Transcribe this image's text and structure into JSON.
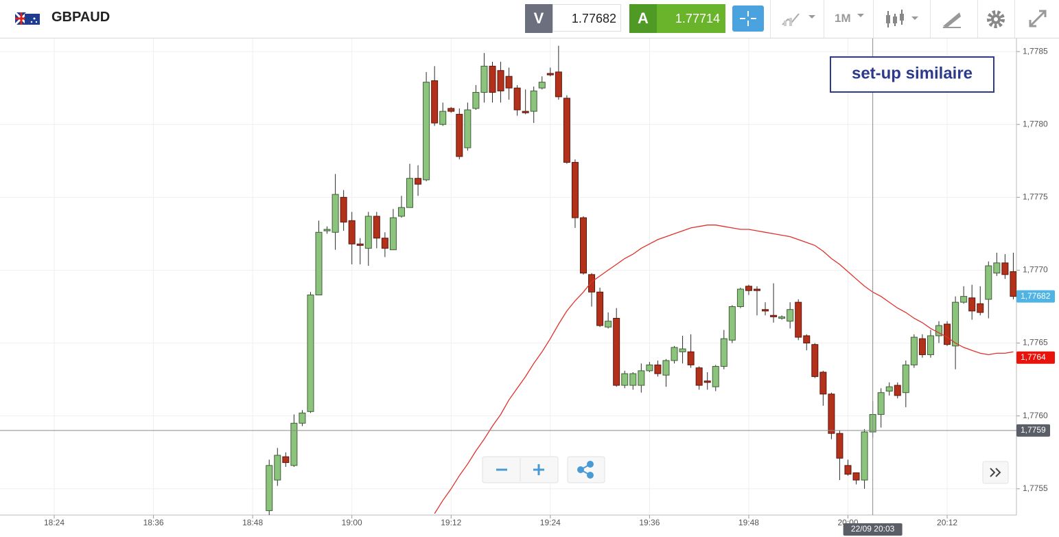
{
  "header": {
    "symbol": "GBPAUD",
    "sell_label": "V",
    "sell_price": "1.77682",
    "buy_label": "A",
    "buy_price": "1.77714",
    "timeframe": "1M"
  },
  "chart_data": {
    "type": "candlestick",
    "annotation": "set-up similaire",
    "x": [
      1130,
      1131,
      1132,
      1133,
      1134,
      1135,
      1136,
      1137,
      1138,
      1139,
      1140,
      1141,
      1142,
      1143,
      1144,
      1145,
      1146,
      1147,
      1148,
      1149,
      1150,
      1151,
      1152,
      1153,
      1154,
      1155,
      1156,
      1157,
      1158,
      1159,
      1160,
      1161,
      1162,
      1163,
      1164,
      1165,
      1166,
      1167,
      1168,
      1169,
      1170,
      1171,
      1172,
      1173,
      1174,
      1175,
      1176,
      1177,
      1178,
      1179,
      1180,
      1181,
      1182,
      1183,
      1184,
      1185,
      1186,
      1187,
      1188,
      1189,
      1190,
      1191,
      1192,
      1193,
      1194,
      1195,
      1196,
      1197,
      1198,
      1199,
      1200,
      1201,
      1202,
      1203,
      1204,
      1205,
      1206,
      1207,
      1208,
      1209,
      1210,
      1211,
      1212,
      1213,
      1214,
      1215,
      1216,
      1217,
      1218,
      1219,
      1220
    ],
    "open": [
      1.77535,
      1.77556,
      1.77572,
      1.77566,
      1.77595,
      1.77603,
      1.77683,
      1.77727,
      1.77726,
      1.7775,
      1.77734,
      1.77718,
      1.77715,
      1.77737,
      1.77722,
      1.77714,
      1.77737,
      1.77743,
      1.77763,
      1.77762,
      1.7783,
      1.778,
      1.77811,
      1.77807,
      1.77784,
      1.77811,
      1.77822,
      1.7784,
      1.77837,
      1.77833,
      1.77825,
      1.77809,
      1.77809,
      1.77825,
      1.77835,
      1.77836,
      1.77818,
      1.77774,
      1.77736,
      1.77697,
      1.77685,
      1.77661,
      1.77667,
      1.77621,
      1.77621,
      1.77621,
      1.77631,
      1.77635,
      1.77628,
      1.77638,
      1.77644,
      1.77644,
      1.77633,
      1.77624,
      1.7762,
      1.77634,
      1.77652,
      1.77675,
      1.77689,
      1.77687,
      1.77673,
      1.77669,
      1.77667,
      1.77665,
      1.77678,
      1.77655,
      1.77649,
      1.7763,
      1.77615,
      1.77588,
      1.77566,
      1.77561,
      1.77556,
      1.77589,
      1.77601,
      1.77617,
      1.77621,
      1.77616,
      1.77635,
      1.77653,
      1.77642,
      1.77655,
      1.77663,
      1.77648,
      1.77678,
      1.77681,
      1.77677,
      1.7768,
      1.77698,
      1.77705,
      1.77699
    ],
    "high": [
      1.7757,
      1.77578,
      1.77575,
      1.77601,
      1.77604,
      1.77685,
      1.77734,
      1.7773,
      1.77766,
      1.77755,
      1.7774,
      1.77722,
      1.7774,
      1.7774,
      1.77726,
      1.77742,
      1.77751,
      1.77773,
      1.77772,
      1.77836,
      1.7784,
      1.77815,
      1.77812,
      1.77811,
      1.77815,
      1.77827,
      1.77849,
      1.77843,
      1.77843,
      1.77839,
      1.77827,
      1.77824,
      1.77826,
      1.77833,
      1.77839,
      1.77854,
      1.7782,
      1.77776,
      1.77737,
      1.77698,
      1.77688,
      1.77671,
      1.77674,
      1.77631,
      1.7763,
      1.77636,
      1.77637,
      1.77638,
      1.77639,
      1.77648,
      1.77655,
      1.77656,
      1.77634,
      1.7763,
      1.77635,
      1.77659,
      1.77676,
      1.77688,
      1.7769,
      1.77689,
      1.77678,
      1.77691,
      1.77669,
      1.77678,
      1.7768,
      1.77656,
      1.7765,
      1.77631,
      1.77616,
      1.7759,
      1.7757,
      1.77561,
      1.77591,
      1.7761,
      1.77619,
      1.77623,
      1.77623,
      1.77638,
      1.77656,
      1.77656,
      1.77659,
      1.77665,
      1.77665,
      1.77682,
      1.77689,
      1.7769,
      1.77689,
      1.77706,
      1.77712,
      1.77711,
      1.77712
    ],
    "low": [
      1.7753,
      1.77552,
      1.77565,
      1.77565,
      1.77593,
      1.77602,
      1.77683,
      1.77725,
      1.77714,
      1.77727,
      1.77704,
      1.77704,
      1.77703,
      1.77715,
      1.77709,
      1.77714,
      1.77736,
      1.77743,
      1.77751,
      1.77761,
      1.77799,
      1.77799,
      1.77808,
      1.77776,
      1.77782,
      1.7781,
      1.77815,
      1.77815,
      1.77815,
      1.77817,
      1.77806,
      1.77807,
      1.77801,
      1.77824,
      1.77833,
      1.77817,
      1.77773,
      1.77729,
      1.77697,
      1.77675,
      1.77661,
      1.7766,
      1.7762,
      1.77619,
      1.77618,
      1.77616,
      1.7763,
      1.77627,
      1.7762,
      1.77636,
      1.77636,
      1.77633,
      1.77618,
      1.77618,
      1.77617,
      1.77632,
      1.7765,
      1.77674,
      1.77683,
      1.77669,
      1.77669,
      1.77664,
      1.77666,
      1.7766,
      1.77652,
      1.77645,
      1.77626,
      1.77607,
      1.77584,
      1.77556,
      1.77559,
      1.77553,
      1.7755,
      1.77585,
      1.77592,
      1.77614,
      1.77612,
      1.77606,
      1.77633,
      1.7764,
      1.7764,
      1.7765,
      1.77648,
      1.77632,
      1.77677,
      1.77666,
      1.77669,
      1.77667,
      1.77696,
      1.77694,
      1.7768
    ],
    "close": [
      1.77566,
      1.77573,
      1.77568,
      1.77595,
      1.77602,
      1.77683,
      1.77726,
      1.77728,
      1.77752,
      1.77733,
      1.77718,
      1.77717,
      1.77737,
      1.77722,
      1.77715,
      1.77736,
      1.77743,
      1.77763,
      1.77759,
      1.77829,
      1.77801,
      1.77809,
      1.77809,
      1.77778,
      1.7781,
      1.77822,
      1.7784,
      1.77822,
      1.77823,
      1.77825,
      1.7781,
      1.77808,
      1.77823,
      1.77829,
      1.77834,
      1.77819,
      1.77774,
      1.77736,
      1.77698,
      1.77685,
      1.77662,
      1.77665,
      1.77621,
      1.77629,
      1.77629,
      1.77631,
      1.77635,
      1.77629,
      1.77638,
      1.77647,
      1.77646,
      1.77635,
      1.77621,
      1.77623,
      1.77634,
      1.77653,
      1.77675,
      1.77687,
      1.77686,
      1.77686,
      1.77672,
      1.77668,
      1.77668,
      1.77673,
      1.77654,
      1.7765,
      1.77627,
      1.77615,
      1.77588,
      1.77571,
      1.7756,
      1.77556,
      1.77589,
      1.77601,
      1.77616,
      1.7762,
      1.77614,
      1.77635,
      1.77654,
      1.77642,
      1.77655,
      1.77662,
      1.77649,
      1.77678,
      1.77682,
      1.77672,
      1.77671,
      1.77703,
      1.77705,
      1.77697,
      1.77682
    ],
    "up_color": "#8cc47e",
    "down_color": "#b3301b",
    "overlay": {
      "color": "#e0302a",
      "values": [
        null,
        null,
        null,
        null,
        null,
        null,
        null,
        null,
        null,
        null,
        null,
        null,
        null,
        null,
        null,
        null,
        null,
        null,
        null,
        null,
        1.77533,
        1.77542,
        1.7755,
        1.77559,
        1.77567,
        1.77576,
        1.77584,
        1.77593,
        1.77601,
        1.77611,
        1.77619,
        1.77627,
        1.77636,
        1.77644,
        1.77653,
        1.77663,
        1.77672,
        1.77679,
        1.77685,
        1.77692,
        1.77696,
        1.777,
        1.77704,
        1.77708,
        1.77711,
        1.77715,
        1.77718,
        1.77721,
        1.77723,
        1.77725,
        1.77727,
        1.77729,
        1.7773,
        1.77731,
        1.77731,
        1.7773,
        1.77729,
        1.77728,
        1.77728,
        1.77727,
        1.77726,
        1.77725,
        1.77724,
        1.77723,
        1.77721,
        1.77719,
        1.77717,
        1.77713,
        1.77708,
        1.77704,
        1.77699,
        1.77694,
        1.77689,
        1.77685,
        1.77682,
        1.77678,
        1.77674,
        1.77671,
        1.77667,
        1.77664,
        1.7766,
        1.77657,
        1.77654,
        1.7765,
        1.77647,
        1.77645,
        1.77643,
        1.77642,
        1.77643,
        1.77643,
        1.77644
      ]
    },
    "xlim": [
      1097.44,
      1220.38
    ],
    "xticks": [
      {
        "value": 1104,
        "label": "18:24"
      },
      {
        "value": 1116,
        "label": "18:36"
      },
      {
        "value": 1128,
        "label": "18:48"
      },
      {
        "value": 1140,
        "label": "19:00"
      },
      {
        "value": 1152,
        "label": "19:12"
      },
      {
        "value": 1164,
        "label": "19:24"
      },
      {
        "value": 1176,
        "label": "19:36"
      },
      {
        "value": 1188,
        "label": "19:48"
      },
      {
        "value": 1200,
        "label": "20:00"
      },
      {
        "value": 1212,
        "label": "20:12"
      }
    ],
    "ylim": [
      1.77532,
      1.77859
    ],
    "yticks": [
      {
        "value": 1.7755,
        "label": "1,7755"
      },
      {
        "value": 1.776,
        "label": "1,7760"
      },
      {
        "value": 1.7765,
        "label": "1,7765"
      },
      {
        "value": 1.777,
        "label": "1,7770"
      },
      {
        "value": 1.7775,
        "label": "1,7775"
      },
      {
        "value": 1.778,
        "label": "1,7780"
      },
      {
        "value": 1.7785,
        "label": "1,7785"
      }
    ],
    "grid": true,
    "price_tags": [
      {
        "value": 1.77682,
        "label": "1,77682",
        "color": "#4fb3e4"
      },
      {
        "value": 1.7764,
        "label": "1,7764",
        "color": "#e8140c"
      }
    ],
    "crosshair": {
      "x": {
        "value": 1203,
        "label": "22/09 20:03"
      },
      "y": {
        "value": 1.7759,
        "label": "1,7759"
      },
      "color": "#5a5e66"
    }
  }
}
